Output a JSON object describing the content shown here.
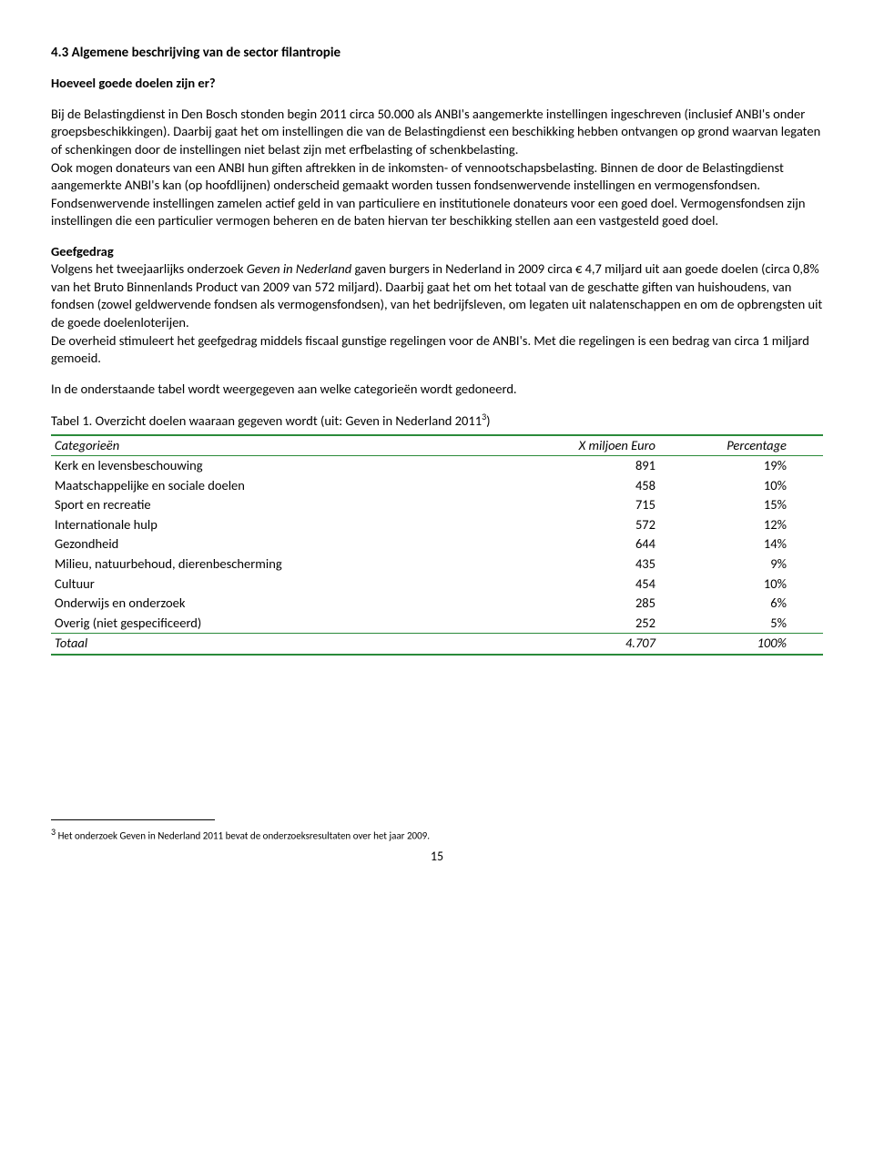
{
  "heading": "4.3  Algemene beschrijving van de sector filantropie",
  "sub1_title": "Hoeveel goede doelen zijn er?",
  "para1": "Bij de Belastingdienst in Den Bosch stonden begin 2011 circa 50.000 als ANBI's aangemerkte instellingen ingeschreven (inclusief ANBI's onder groepsbeschikkingen). Daarbij gaat het om instellingen die van de Belastingdienst een beschikking hebben ontvangen op grond waarvan legaten of schenkingen door de instellingen niet belast zijn met erfbelasting of schenkbelasting.",
  "para2": "Ook mogen donateurs van een ANBI hun giften aftrekken in de inkomsten- of vennootschapsbelasting. Binnen de door de Belastingdienst aangemerkte ANBI's kan (op hoofdlijnen) onderscheid gemaakt worden tussen fondsenwervende instellingen en vermogensfondsen. Fondsenwervende instellingen zamelen actief geld in van particuliere en institutionele donateurs voor een goed doel. Vermogensfondsen zijn instellingen die een particulier vermogen beheren en de baten hiervan ter beschikking stellen aan een vastgesteld goed doel.",
  "sub2_title": "Geefgedrag",
  "para3a": "Volgens het tweejaarlijks onderzoek ",
  "para3_italic": "Geven in Nederland",
  "para3b": " gaven burgers in Nederland in 2009 circa € 4,7 miljard uit aan goede doelen (circa 0,8% van het Bruto Binnenlands Product van 2009 van 572 miljard). Daarbij gaat het om het totaal van de geschatte giften van huishoudens, van fondsen (zowel geldwervende fondsen als vermogensfondsen), van het bedrijfsleven, om legaten uit nalatenschappen en om de opbrengsten uit de goede doelenloterijen.",
  "para4": "De overheid stimuleert het geefgedrag middels fiscaal gunstige regelingen voor de ANBI's. Met die regelingen is een bedrag van circa 1 miljard gemoeid.",
  "para5": "In de onderstaande tabel wordt weergegeven aan welke categorieën wordt gedoneerd.",
  "table_caption_a": "Tabel 1. Overzicht doelen waaraan gegeven wordt (uit: Geven in Nederland 2011",
  "table_caption_sup": "3",
  "table_caption_b": ")",
  "table": {
    "head": {
      "c1": "Categorieën",
      "c2": "X miljoen Euro",
      "c3": "Percentage"
    },
    "rows": [
      {
        "c1": "Kerk en levensbeschouwing",
        "c2": "891",
        "c3": "19%"
      },
      {
        "c1": "Maatschappelijke en sociale doelen",
        "c2": "458",
        "c3": "10%"
      },
      {
        "c1": "Sport en recreatie",
        "c2": "715",
        "c3": "15%"
      },
      {
        "c1": "Internationale hulp",
        "c2": "572",
        "c3": "12%"
      },
      {
        "c1": "Gezondheid",
        "c2": "644",
        "c3": "14%"
      },
      {
        "c1": "Milieu, natuurbehoud, dierenbescherming",
        "c2": "435",
        "c3": "9%"
      },
      {
        "c1": "Cultuur",
        "c2": "454",
        "c3": "10%"
      },
      {
        "c1": "Onderwijs en onderzoek",
        "c2": "285",
        "c3": "6%"
      },
      {
        "c1": "Overig (niet gespecificeerd)",
        "c2": "252",
        "c3": "5%"
      }
    ],
    "total": {
      "c1": "Totaal",
      "c2": "4.707",
      "c3": "100%"
    }
  },
  "footnote_sup": "3",
  "footnote": " Het onderzoek Geven in Nederland 2011 bevat de onderzoeksresultaten over het jaar 2009.",
  "pagenum": "15"
}
